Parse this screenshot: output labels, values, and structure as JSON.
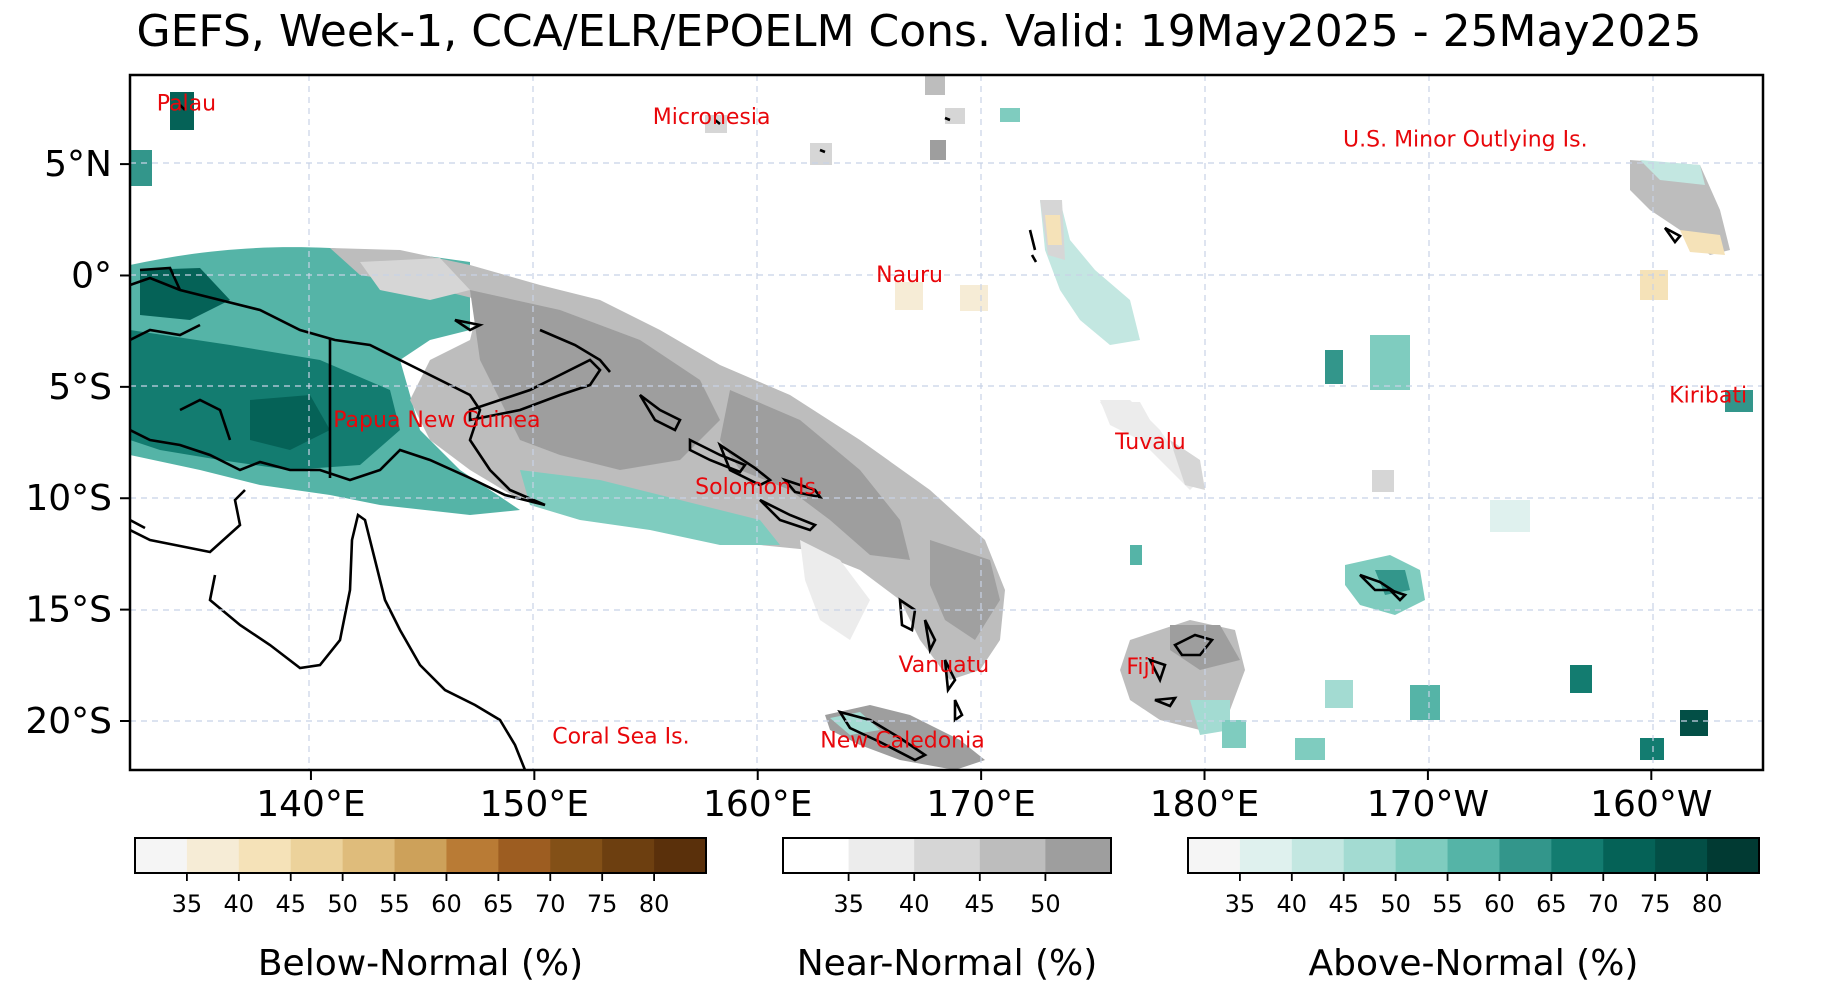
{
  "title": "GEFS, Week-1, CCA/ELR/EPOELM Cons. Valid: 19May2025 - 25May2025",
  "map": {
    "lon_range_east": [
      131.9,
      205.0
    ],
    "lat_range": [
      -22.2,
      9.0
    ],
    "gridlines": true,
    "x_ticks": [
      {
        "lon": 140,
        "label": "140°E"
      },
      {
        "lon": 150,
        "label": "150°E"
      },
      {
        "lon": 160,
        "label": "160°E"
      },
      {
        "lon": 170,
        "label": "170°E"
      },
      {
        "lon": 180,
        "label": "180°E"
      },
      {
        "lon": 190,
        "label": "170°W"
      },
      {
        "lon": 200,
        "label": "160°W"
      }
    ],
    "y_ticks": [
      {
        "lat": 5,
        "label": "5°N"
      },
      {
        "lat": 0,
        "label": "0°"
      },
      {
        "lat": -5,
        "label": "5°S"
      },
      {
        "lat": -10,
        "label": "10°S"
      },
      {
        "lat": -15,
        "label": "15°S"
      },
      {
        "lat": -20,
        "label": "20°S"
      }
    ],
    "region_labels": [
      {
        "text": "Palau",
        "lon": 133.1,
        "lat": 7.4
      },
      {
        "text": "Micronesia",
        "lon": 155.3,
        "lat": 6.8
      },
      {
        "text": "U.S. Minor Outlying Is.",
        "lon": 186.2,
        "lat": 5.8
      },
      {
        "text": "Nauru",
        "lon": 165.3,
        "lat": -0.3
      },
      {
        "text": "Kiribati",
        "lon": 200.8,
        "lat": -5.7
      },
      {
        "text": "Papua New Guinea",
        "lon": 141.0,
        "lat": -6.8
      },
      {
        "text": "Tuvalu",
        "lon": 176.0,
        "lat": -7.8
      },
      {
        "text": "Solomon Is.",
        "lon": 157.2,
        "lat": -9.8
      },
      {
        "text": "Vanuatu",
        "lon": 166.3,
        "lat": -17.8
      },
      {
        "text": "Fiji",
        "lon": 176.5,
        "lat": -17.9
      },
      {
        "text": "Coral Sea Is.",
        "lon": 150.8,
        "lat": -21.0
      },
      {
        "text": "New Caledonia",
        "lon": 162.8,
        "lat": -21.2
      }
    ]
  },
  "colorbars": [
    {
      "title": "Below-Normal (%)",
      "tick_labels": [
        "35",
        "40",
        "45",
        "50",
        "55",
        "60",
        "65",
        "70",
        "75",
        "80"
      ],
      "colors": [
        "#f5f5f5",
        "#f6ecd6",
        "#f5e2b8",
        "#ecd29b",
        "#dfbc7b",
        "#cda15a",
        "#b97b35",
        "#9d5d21",
        "#835017",
        "#6d3f10",
        "#5a300b"
      ]
    },
    {
      "title": "Near-Normal (%)",
      "tick_labels": [
        "35",
        "40",
        "45",
        "50"
      ],
      "colors": [
        "#ffffff",
        "#ececec",
        "#d6d6d6",
        "#bdbdbd",
        "#9e9e9e"
      ]
    },
    {
      "title": "Above-Normal (%)",
      "tick_labels": [
        "35",
        "40",
        "45",
        "50",
        "55",
        "60",
        "65",
        "70",
        "75",
        "80"
      ],
      "colors": [
        "#f5f5f5",
        "#dff1ee",
        "#c3e7e1",
        "#a3dbd2",
        "#7fccbf",
        "#55b4a7",
        "#33968b",
        "#137c70",
        "#056257",
        "#034f46",
        "#013a33"
      ]
    }
  ]
}
